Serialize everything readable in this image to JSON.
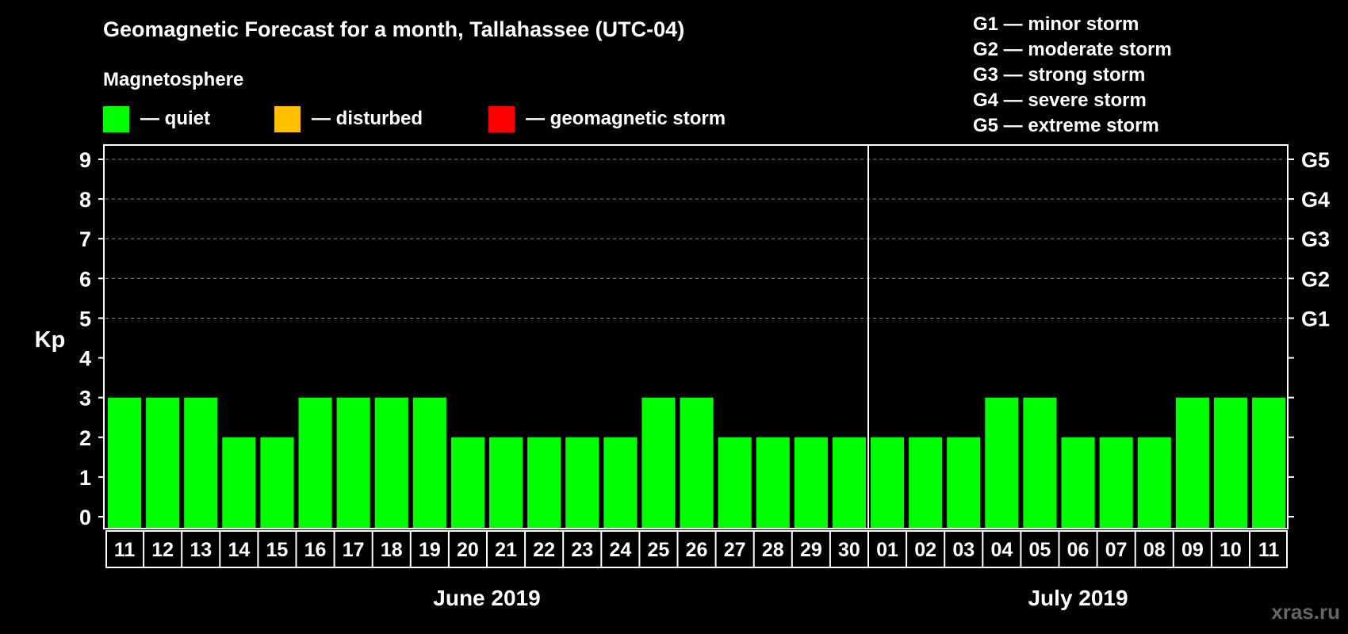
{
  "chart_data": {
    "type": "bar",
    "title": "Geomagnetic Forecast for a month, Tallahassee (UTC-04)",
    "section_label": "Magnetosphere",
    "ylabel": "Kp",
    "ylim": [
      0,
      9
    ],
    "yticks": [
      "0",
      "1",
      "2",
      "3",
      "4",
      "5",
      "6",
      "7",
      "8",
      "9"
    ],
    "right_axis": [
      {
        "kp": 5,
        "label": "G1"
      },
      {
        "kp": 6,
        "label": "G2"
      },
      {
        "kp": 7,
        "label": "G3"
      },
      {
        "kp": 8,
        "label": "G4"
      },
      {
        "kp": 9,
        "label": "G5"
      }
    ],
    "legend": [
      {
        "label": "— quiet",
        "color": "#00ff00"
      },
      {
        "label": "— disturbed",
        "color": "#ffc000"
      },
      {
        "label": "— geomagnetic storm",
        "color": "#ff0000"
      }
    ],
    "storm_scale": [
      "G1 — minor storm",
      "G2 — moderate storm",
      "G3 — strong storm",
      "G4 — severe storm",
      "G5 — extreme storm"
    ],
    "categories": [
      "11",
      "12",
      "13",
      "14",
      "15",
      "16",
      "17",
      "18",
      "19",
      "20",
      "21",
      "22",
      "23",
      "24",
      "25",
      "26",
      "27",
      "28",
      "29",
      "30",
      "01",
      "02",
      "03",
      "04",
      "05",
      "06",
      "07",
      "08",
      "09",
      "10",
      "11"
    ],
    "values": [
      3,
      3,
      3,
      2,
      2,
      3,
      3,
      3,
      3,
      2,
      2,
      2,
      2,
      2,
      3,
      3,
      2,
      2,
      2,
      2,
      2,
      2,
      2,
      3,
      3,
      2,
      2,
      2,
      3,
      3,
      3
    ],
    "bar_colors": [
      "#00ff00",
      "#00ff00",
      "#00ff00",
      "#00ff00",
      "#00ff00",
      "#00ff00",
      "#00ff00",
      "#00ff00",
      "#00ff00",
      "#00ff00",
      "#00ff00",
      "#00ff00",
      "#00ff00",
      "#00ff00",
      "#00ff00",
      "#00ff00",
      "#00ff00",
      "#00ff00",
      "#00ff00",
      "#00ff00",
      "#00ff00",
      "#00ff00",
      "#00ff00",
      "#00ff00",
      "#00ff00",
      "#00ff00",
      "#00ff00",
      "#00ff00",
      "#00ff00",
      "#00ff00",
      "#00ff00"
    ],
    "months": [
      {
        "label": "June 2019",
        "start_index": 0,
        "count": 20
      },
      {
        "label": "July 2019",
        "start_index": 20,
        "count": 11
      }
    ],
    "gridlines": "dashed at Kp 5-9"
  },
  "watermark": "xras.ru",
  "colors": {
    "background": "#000000",
    "foreground": "#ffffff",
    "grid": "#888888"
  }
}
